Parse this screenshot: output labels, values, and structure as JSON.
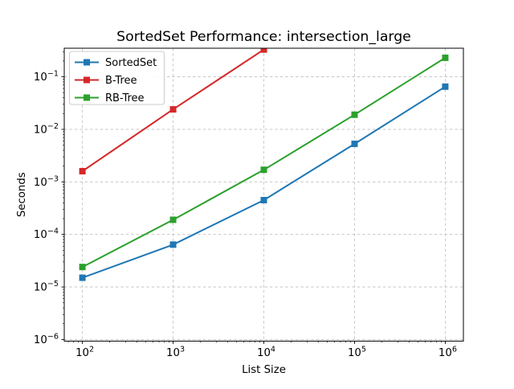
{
  "figure": {
    "background": "#ffffff"
  },
  "chart_data": {
    "type": "line",
    "title": "SortedSet Performance: intersection_large",
    "xlabel": "List Size",
    "ylabel": "Seconds",
    "x_scale": "log",
    "y_scale": "log",
    "xlim_exponents": [
      1.8,
      6.2
    ],
    "ylim": [
      1e-06,
      0.35
    ],
    "x_tick_exponents": [
      2,
      3,
      4,
      5,
      6
    ],
    "y_tick_exponents": [
      -6,
      -5,
      -4,
      -3,
      -2,
      -1
    ],
    "grid": "major-dashed",
    "legend_position": "upper-left",
    "x": [
      100,
      1000,
      10000,
      100000,
      1000000
    ],
    "series": [
      {
        "name": "SortedSet",
        "color": "#1f77b4",
        "marker": "square",
        "values": [
          1.5e-05,
          6.4e-05,
          0.00045,
          0.0053,
          0.065
        ]
      },
      {
        "name": "B-Tree",
        "color": "#d62728",
        "marker": "square",
        "values": [
          0.0016,
          0.024,
          0.33,
          null,
          null
        ]
      },
      {
        "name": "RB-Tree",
        "color": "#2ca02c",
        "marker": "square",
        "values": [
          2.4e-05,
          0.00019,
          0.0017,
          0.019,
          0.23
        ]
      }
    ]
  }
}
